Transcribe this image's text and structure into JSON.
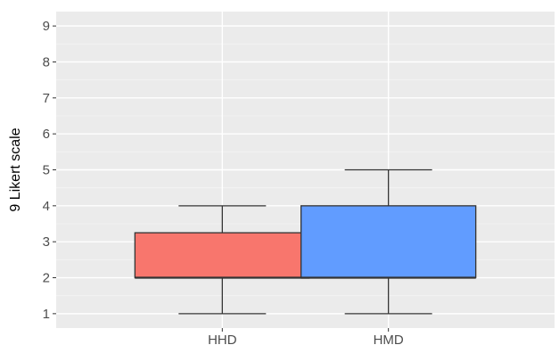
{
  "chart_data": {
    "type": "boxplot",
    "title": "",
    "xlabel": "",
    "ylabel": "9 Likert scale",
    "ylim": [
      0.6,
      9.4
    ],
    "yticks": [
      1,
      2,
      3,
      4,
      5,
      6,
      7,
      8,
      9
    ],
    "grid": true,
    "legend": "none",
    "categories": [
      "HHD",
      "HMD"
    ],
    "boxes": [
      {
        "category": "HHD",
        "min": 1,
        "q1": 2,
        "median": 2,
        "q3": 3.25,
        "max": 4,
        "color": "#F8766D"
      },
      {
        "category": "HMD",
        "min": 1,
        "q1": 2,
        "median": 2,
        "q3": 4,
        "max": 5,
        "color": "#619CFF"
      }
    ]
  }
}
